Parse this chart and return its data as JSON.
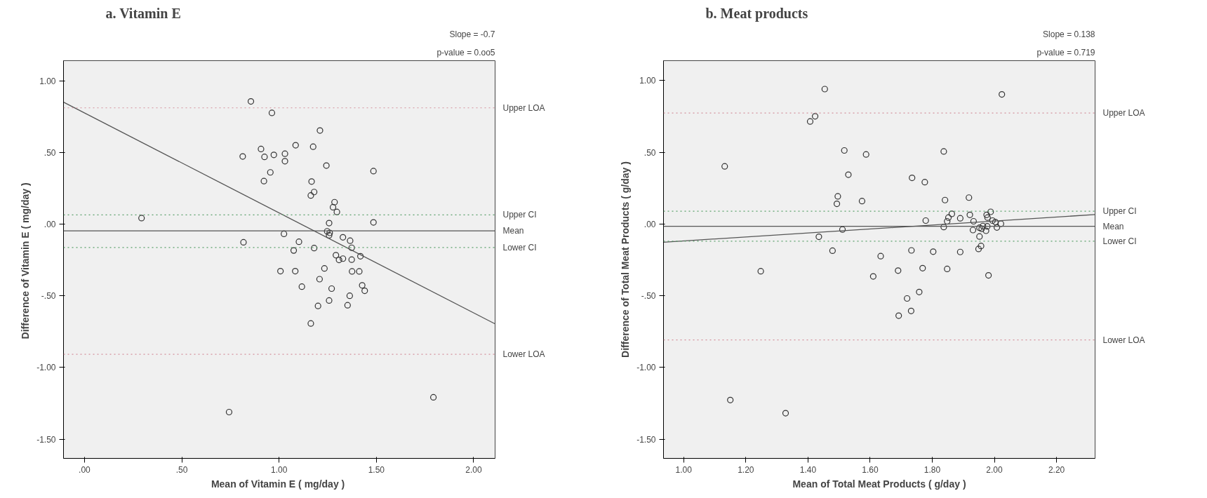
{
  "chart_data": [
    {
      "type": "scatter",
      "title": "a. Vitamin E",
      "xlabel": "Mean of  Vitamin E ( mg/day )",
      "ylabel": "Difference of  Vitamin E ( mg/day )",
      "grid": false,
      "xlim": [
        -0.108,
        2.11
      ],
      "ylim": [
        -1.634,
        1.14
      ],
      "xticks": [
        {
          "value": 0,
          "label": ".00"
        },
        {
          "value": 0.5,
          "label": ".50"
        },
        {
          "value": 1,
          "label": "1.00"
        },
        {
          "value": 1.5,
          "label": "1.50"
        },
        {
          "value": 2,
          "label": "2.00"
        }
      ],
      "yticks": [
        {
          "value": 1,
          "label": "1.00"
        },
        {
          "value": 0.5,
          "label": ".50"
        },
        {
          "value": 0,
          "label": ".00"
        },
        {
          "value": -0.5,
          "label": "-.50"
        },
        {
          "value": -1,
          "label": "-1.00"
        },
        {
          "value": -1.5,
          "label": "-1.50"
        }
      ],
      "series": [
        {
          "type": "scatter",
          "marker": "circle",
          "color": "#333333",
          "x": [
            0.855,
            0.963,
            1.21,
            0.813,
            0.907,
            0.925,
            0.973,
            1.03,
            1.03,
            1.085,
            1.175,
            0.955,
            0.922,
            1.243,
            1.485,
            1.167,
            1.18,
            1.163,
            1.285,
            1.277,
            1.297,
            0.293,
            1.257,
            1.485,
            1.247,
            1.26,
            1.257,
            1.025,
            0.817,
            1.102,
            1.328,
            1.365,
            1.373,
            1.18,
            1.075,
            1.292,
            1.308,
            1.328,
            1.373,
            1.418,
            1.233,
            1.007,
            1.083,
            1.375,
            1.412,
            1.208,
            1.117,
            1.27,
            1.427,
            1.44,
            1.363,
            1.257,
            1.2,
            1.352,
            1.163,
            0.743,
            1.793
          ],
          "values": [
            0.856,
            0.776,
            0.653,
            0.472,
            0.524,
            0.469,
            0.483,
            0.491,
            0.439,
            0.55,
            0.54,
            0.361,
            0.3,
            0.408,
            0.37,
            0.297,
            0.224,
            0.2,
            0.153,
            0.118,
            0.085,
            0.042,
            0.007,
            0.012,
            -0.05,
            -0.061,
            -0.078,
            -0.068,
            -0.127,
            -0.123,
            -0.092,
            -0.116,
            -0.165,
            -0.167,
            -0.184,
            -0.217,
            -0.25,
            -0.241,
            -0.248,
            -0.224,
            -0.309,
            -0.328,
            -0.328,
            -0.33,
            -0.33,
            -0.384,
            -0.436,
            -0.45,
            -0.427,
            -0.465,
            -0.5,
            -0.533,
            -0.571,
            -0.566,
            -0.693,
            -1.311,
            -1.208
          ]
        },
        {
          "type": "line",
          "color": "#555555",
          "x": [
            -0.108,
            2.11
          ],
          "values": [
            0.851,
            -0.696
          ]
        }
      ],
      "ref_lines": [
        {
          "axis": "y",
          "value": 0.811,
          "label": "Upper LOA",
          "color": "#d4909c",
          "line_style": "dotted"
        },
        {
          "axis": "y",
          "value": 0.064,
          "label": "Upper CI",
          "color": "#5aa06a",
          "line_style": "dotted"
        },
        {
          "axis": "y",
          "value": -0.047,
          "label": "Mean",
          "color": "#555555",
          "line_style": "solid"
        },
        {
          "axis": "y",
          "value": -0.163,
          "label": "Lower CI",
          "color": "#5aa06a",
          "line_style": "dotted"
        },
        {
          "axis": "y",
          "value": -0.908,
          "label": "Lower LOA",
          "color": "#d4909c",
          "line_style": "dotted"
        }
      ],
      "annotations": [
        "Slope = -0.7",
        "p-value = 0.oo5"
      ]
    },
    {
      "type": "scatter",
      "title": "b. Meat products",
      "xlabel": "Mean of Total Meat Products ( g/day )",
      "ylabel": "Difference of Total Meat Products ( g/day )",
      "grid": false,
      "xlim": [
        0.935,
        2.324
      ],
      "ylim": [
        -1.634,
        1.139
      ],
      "xticks": [
        {
          "value": 1,
          "label": "1.00"
        },
        {
          "value": 1.2,
          "label": "1.20"
        },
        {
          "value": 1.4,
          "label": "1.40"
        },
        {
          "value": 1.6,
          "label": "1.60"
        },
        {
          "value": 1.8,
          "label": "1.80"
        },
        {
          "value": 2,
          "label": "2.00"
        },
        {
          "value": 2.2,
          "label": "2.20"
        }
      ],
      "yticks": [
        {
          "value": 1,
          "label": "1.00"
        },
        {
          "value": 0.5,
          "label": ".50"
        },
        {
          "value": 0,
          "label": ".00"
        },
        {
          "value": -0.5,
          "label": "-.50"
        },
        {
          "value": -1,
          "label": "-1.00"
        },
        {
          "value": -1.5,
          "label": "-1.50"
        }
      ],
      "series": [
        {
          "type": "scatter",
          "marker": "circle",
          "color": "#333333",
          "x": [
            1.454,
            2.024,
            1.407,
            1.423,
            1.517,
            1.587,
            1.837,
            1.132,
            1.53,
            1.735,
            1.776,
            1.496,
            1.493,
            1.574,
            1.841,
            1.918,
            1.863,
            1.852,
            1.848,
            1.89,
            1.921,
            1.779,
            1.933,
            1.975,
            1.988,
            1.978,
            1.994,
            2.003,
            2.021,
            1.837,
            1.931,
            1.952,
            1.963,
            1.973,
            1.977,
            2.008,
            1.959,
            1.511,
            1.435,
            1.952,
            1.479,
            1.733,
            1.803,
            1.89,
            1.949,
            1.957,
            1.634,
            1.248,
            1.69,
            1.769,
            1.848,
            1.61,
            1.981,
            1.758,
            1.719,
            1.732,
            1.692,
            1.15,
            1.328
          ],
          "values": [
            0.941,
            0.904,
            0.715,
            0.751,
            0.513,
            0.485,
            0.506,
            0.402,
            0.344,
            0.322,
            0.292,
            0.193,
            0.141,
            0.16,
            0.167,
            0.184,
            0.071,
            0.045,
            0.019,
            0.04,
            0.064,
            0.024,
            0.019,
            0.064,
            0.085,
            0.045,
            0.024,
            0.014,
            0.002,
            -0.021,
            -0.042,
            -0.026,
            -0.014,
            -0.047,
            -0.016,
            -0.024,
            -0.033,
            -0.038,
            -0.089,
            -0.087,
            -0.186,
            -0.184,
            -0.193,
            -0.195,
            -0.174,
            -0.153,
            -0.224,
            -0.329,
            -0.325,
            -0.308,
            -0.313,
            -0.365,
            -0.358,
            -0.474,
            -0.519,
            -0.606,
            -0.639,
            -1.227,
            -1.319
          ]
        },
        {
          "type": "line",
          "color": "#555555",
          "x": [
            0.935,
            2.324
          ],
          "values": [
            -0.127,
            0.066
          ]
        }
      ],
      "ref_lines": [
        {
          "axis": "y",
          "value": 0.774,
          "label": "Upper LOA",
          "color": "#d4909c",
          "line_style": "dotted"
        },
        {
          "axis": "y",
          "value": 0.089,
          "label": "Upper CI",
          "color": "#5aa06a",
          "line_style": "dotted"
        },
        {
          "axis": "y",
          "value": -0.016,
          "label": "Mean",
          "color": "#555555",
          "line_style": "solid"
        },
        {
          "axis": "y",
          "value": -0.12,
          "label": "Lower CI",
          "color": "#5aa06a",
          "line_style": "dotted"
        },
        {
          "axis": "y",
          "value": -0.808,
          "label": "Lower LOA",
          "color": "#d4909c",
          "line_style": "dotted"
        }
      ],
      "annotations": [
        "Slope = 0.138",
        "p-value = 0.719"
      ]
    }
  ]
}
